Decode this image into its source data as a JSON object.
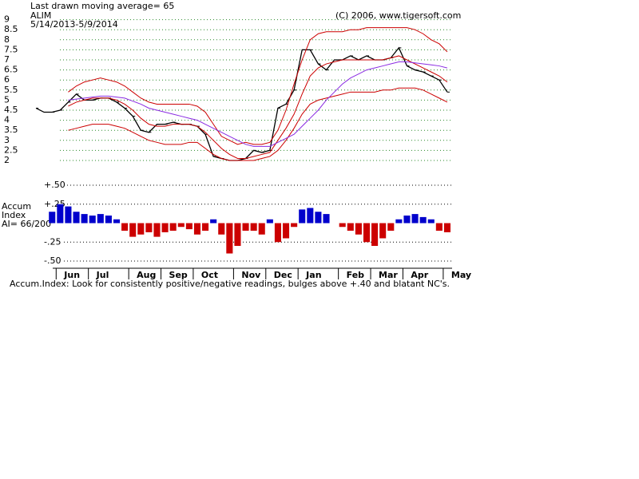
{
  "chart_data": [
    {
      "type": "line",
      "title": "Last drawn moving average= 65",
      "symbol": "ALIM",
      "subtitle": "5/14/2013-5/9/2014",
      "annotation": "(C) 2006, www.tigersoft.com",
      "ylim": [
        2,
        9
      ],
      "yticks": [
        2,
        2.5,
        3,
        3.5,
        4,
        4.5,
        5,
        5.5,
        6,
        6.5,
        7,
        7.5,
        8,
        8.5,
        9
      ],
      "grid": true,
      "series": [
        {
          "color": "#000000",
          "values": [
            4.6,
            4.4,
            4.4,
            4.5,
            4.9,
            5.3,
            5.0,
            5.0,
            5.1,
            5.1,
            4.9,
            4.6,
            4.2,
            3.5,
            3.4,
            3.8,
            3.8,
            3.9,
            3.8,
            3.8,
            3.7,
            3.3,
            2.2,
            2.1,
            2.0,
            2.0,
            2.1,
            2.5,
            2.4,
            2.5,
            4.6,
            4.8,
            5.5,
            7.5,
            7.5,
            6.8,
            6.5,
            7.0,
            7.0,
            7.2,
            7.0,
            7.2,
            7.0,
            7.0,
            7.1,
            7.6,
            6.7,
            6.5,
            6.4,
            6.2,
            6.0,
            5.4
          ]
        },
        {
          "color": "#cc0000",
          "values": [
            null,
            null,
            null,
            null,
            5.4,
            5.7,
            5.9,
            6.0,
            6.1,
            6.0,
            5.9,
            5.7,
            5.4,
            5.1,
            4.9,
            4.8,
            4.8,
            4.8,
            4.8,
            4.8,
            4.7,
            4.4,
            3.8,
            3.2,
            3.0,
            2.8,
            2.9,
            2.8,
            2.8,
            2.9,
            3.5,
            4.5,
            5.8,
            7.0,
            8.0,
            8.3,
            8.4,
            8.4,
            8.4,
            8.5,
            8.5,
            8.6,
            8.6,
            8.6,
            8.6,
            8.6,
            8.6,
            8.5,
            8.3,
            8.0,
            7.8,
            7.4
          ]
        },
        {
          "color": "#cc0000",
          "values": [
            null,
            null,
            null,
            null,
            3.5,
            3.6,
            3.7,
            3.8,
            3.8,
            3.8,
            3.7,
            3.6,
            3.4,
            3.2,
            3.0,
            2.9,
            2.8,
            2.8,
            2.8,
            2.9,
            2.9,
            2.6,
            2.3,
            2.1,
            2.0,
            2.0,
            2.0,
            2.0,
            2.1,
            2.2,
            2.5,
            3.0,
            3.6,
            4.3,
            4.8,
            5.0,
            5.1,
            5.2,
            5.3,
            5.4,
            5.4,
            5.4,
            5.4,
            5.5,
            5.5,
            5.6,
            5.6,
            5.6,
            5.5,
            5.3,
            5.1,
            4.9
          ]
        },
        {
          "color": "#cc0000",
          "values": [
            null,
            null,
            null,
            null,
            4.7,
            4.9,
            5.0,
            5.1,
            5.1,
            5.1,
            5.0,
            4.8,
            4.5,
            4.1,
            3.8,
            3.7,
            3.7,
            3.8,
            3.8,
            3.8,
            3.7,
            3.4,
            3.0,
            2.6,
            2.3,
            2.1,
            2.1,
            2.2,
            2.3,
            2.4,
            3.0,
            3.6,
            4.3,
            5.3,
            6.2,
            6.6,
            6.8,
            6.9,
            7.0,
            7.0,
            7.0,
            7.0,
            7.0,
            7.0,
            7.1,
            7.2,
            7.0,
            6.8,
            6.6,
            6.4,
            6.2,
            5.9
          ]
        },
        {
          "color": "#8a2be2",
          "values": [
            null,
            null,
            null,
            null,
            5.0,
            5.05,
            5.1,
            5.15,
            5.2,
            5.2,
            5.15,
            5.1,
            4.95,
            4.8,
            4.6,
            4.5,
            4.4,
            4.3,
            4.2,
            4.1,
            4.0,
            3.8,
            3.6,
            3.4,
            3.2,
            3.0,
            2.8,
            2.7,
            2.7,
            2.7,
            2.9,
            3.1,
            3.3,
            3.7,
            4.1,
            4.5,
            5.0,
            5.4,
            5.8,
            6.1,
            6.3,
            6.5,
            6.6,
            6.7,
            6.8,
            6.9,
            6.9,
            6.85,
            6.8,
            6.75,
            6.7,
            6.6
          ]
        }
      ]
    },
    {
      "type": "bar",
      "label_lines": [
        "Accum",
        "Index",
        "AI= 66/200"
      ],
      "note": "Accum.Index: Look for consistently positive/negative readings, bulges above +.40 and blatant NC's.",
      "categories": [
        null,
        null,
        null,
        "Jun",
        null,
        null,
        null,
        "Jul",
        null,
        null,
        null,
        null,
        "Aug",
        null,
        null,
        null,
        "Sep",
        null,
        null,
        null,
        "Oct",
        null,
        null,
        null,
        null,
        "Nov",
        null,
        null,
        null,
        "Dec",
        null,
        null,
        null,
        "Jan",
        null,
        null,
        null,
        null,
        "Feb",
        null,
        null,
        null,
        "Mar",
        null,
        null,
        null,
        "Apr",
        null,
        null,
        null,
        null,
        "May"
      ],
      "values": [
        0,
        0,
        0.15,
        0.25,
        0.22,
        0.15,
        0.12,
        0.1,
        0.12,
        0.1,
        0.05,
        -0.1,
        -0.18,
        -0.15,
        -0.12,
        -0.18,
        -0.12,
        -0.1,
        -0.05,
        -0.08,
        -0.15,
        -0.1,
        0.05,
        -0.15,
        -0.4,
        -0.3,
        -0.1,
        -0.1,
        -0.15,
        0.05,
        -0.25,
        -0.2,
        -0.05,
        0.18,
        0.2,
        0.15,
        0.12,
        0.0,
        -0.05,
        -0.1,
        -0.15,
        -0.25,
        -0.3,
        -0.2,
        -0.1,
        0.05,
        0.1,
        0.12,
        0.08,
        0.05,
        -0.1,
        -0.12
      ],
      "color_positive": "#0000cc",
      "color_negative": "#cc0000",
      "ylim": [
        -0.5,
        0.5
      ],
      "yticks": [
        {
          "value": 0.5,
          "label": "+.50"
        },
        {
          "value": 0.25,
          "label": "+.25"
        },
        {
          "value": -0.25,
          "label": "-.25"
        },
        {
          "value": -0.5,
          "label": "-.50"
        }
      ],
      "grid": true
    }
  ]
}
